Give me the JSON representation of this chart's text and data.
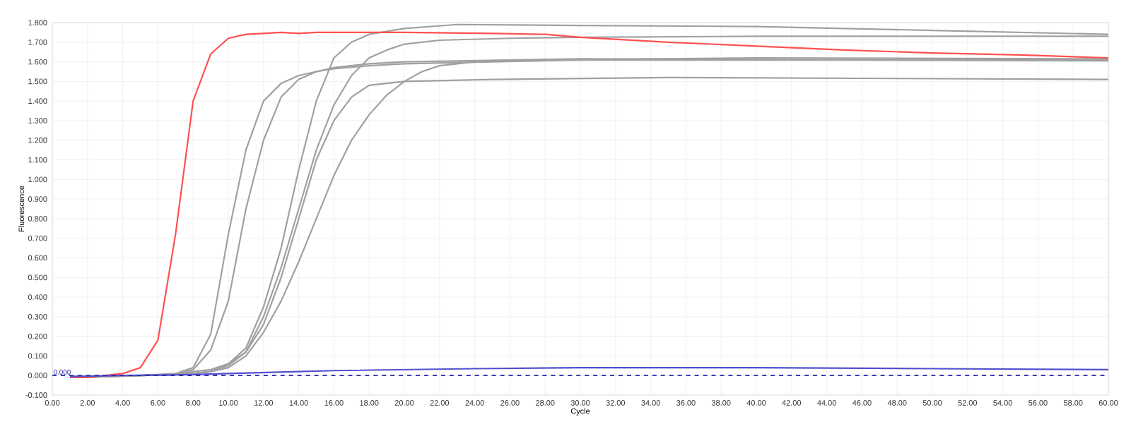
{
  "chart_data": {
    "type": "line",
    "xlabel": "Cycle",
    "ylabel": "Fluorescence",
    "xlim": [
      0,
      60
    ],
    "ylim": [
      -0.1,
      1.8
    ],
    "xticks": [
      {
        "value": 0,
        "label": "0.00"
      },
      {
        "value": 2,
        "label": "2.00"
      },
      {
        "value": 4,
        "label": "4.00"
      },
      {
        "value": 6,
        "label": "6.00"
      },
      {
        "value": 8,
        "label": "8.00"
      },
      {
        "value": 10,
        "label": "10.00"
      },
      {
        "value": 12,
        "label": "12.00"
      },
      {
        "value": 14,
        "label": "14.00"
      },
      {
        "value": 16,
        "label": "16.00"
      },
      {
        "value": 18,
        "label": "18.00"
      },
      {
        "value": 20,
        "label": "20.00"
      },
      {
        "value": 22,
        "label": "22.00"
      },
      {
        "value": 24,
        "label": "24.00"
      },
      {
        "value": 26,
        "label": "26.00"
      },
      {
        "value": 28,
        "label": "28.00"
      },
      {
        "value": 30,
        "label": "30.00"
      },
      {
        "value": 32,
        "label": "32.00"
      },
      {
        "value": 34,
        "label": "34.00"
      },
      {
        "value": 36,
        "label": "36.00"
      },
      {
        "value": 38,
        "label": "38.00"
      },
      {
        "value": 40,
        "label": "40.00"
      },
      {
        "value": 42,
        "label": "42.00"
      },
      {
        "value": 44,
        "label": "44.00"
      },
      {
        "value": 46,
        "label": "46.00"
      },
      {
        "value": 48,
        "label": "48.00"
      },
      {
        "value": 50,
        "label": "50.00"
      },
      {
        "value": 52,
        "label": "52.00"
      },
      {
        "value": 54,
        "label": "54.00"
      },
      {
        "value": 56,
        "label": "56.00"
      },
      {
        "value": 58,
        "label": "58.00"
      },
      {
        "value": 60,
        "label": "60.00"
      }
    ],
    "yticks": [
      {
        "value": -0.1,
        "label": "-0.100"
      },
      {
        "value": 0,
        "label": "0.000"
      },
      {
        "value": 0.1,
        "label": "0.100"
      },
      {
        "value": 0.2,
        "label": "0.200"
      },
      {
        "value": 0.3,
        "label": "0.300"
      },
      {
        "value": 0.4,
        "label": "0.400"
      },
      {
        "value": 0.5,
        "label": "0.500"
      },
      {
        "value": 0.6,
        "label": "0.600"
      },
      {
        "value": 0.7,
        "label": "0.700"
      },
      {
        "value": 0.8,
        "label": "0.800"
      },
      {
        "value": 0.9,
        "label": "0.900"
      },
      {
        "value": 1.0,
        "label": "1.000"
      },
      {
        "value": 1.1,
        "label": "1.100"
      },
      {
        "value": 1.2,
        "label": "1.200"
      },
      {
        "value": 1.3,
        "label": "1.300"
      },
      {
        "value": 1.4,
        "label": "1.400"
      },
      {
        "value": 1.5,
        "label": "1.500"
      },
      {
        "value": 1.6,
        "label": "1.600"
      },
      {
        "value": 1.7,
        "label": "1.700"
      },
      {
        "value": 1.8,
        "label": "1.800"
      }
    ],
    "grid": true,
    "marker": "none",
    "line_style": "solid",
    "ref_lines": [
      {
        "axis": "y",
        "value": 0,
        "label": "0.000",
        "color": "#2b2bb0",
        "line_style": "dashed"
      }
    ],
    "series": [
      {
        "color": "#a0a0a0",
        "x": [
          2,
          3,
          5,
          7,
          8,
          9,
          10,
          11,
          12,
          13,
          14,
          15,
          16,
          18,
          20,
          25,
          30,
          60
        ],
        "values": [
          -0.01,
          -0.005,
          0,
          0.01,
          0.04,
          0.21,
          0.72,
          1.15,
          1.4,
          1.49,
          1.53,
          1.55,
          1.565,
          1.58,
          1.59,
          1.6,
          1.61,
          1.61
        ]
      },
      {
        "color": "#a0a0a0",
        "x": [
          3,
          5,
          7,
          8,
          9,
          10,
          11,
          12,
          13,
          14,
          15,
          16,
          18,
          20,
          30,
          60
        ],
        "values": [
          -0.005,
          0,
          0.005,
          0.03,
          0.13,
          0.38,
          0.85,
          1.2,
          1.42,
          1.51,
          1.55,
          1.57,
          1.59,
          1.6,
          1.615,
          1.605
        ]
      },
      {
        "color": "#a0a0a0",
        "x": [
          1,
          3,
          5,
          7,
          8,
          9,
          10,
          11,
          12,
          13,
          14,
          15,
          16,
          17,
          18,
          20,
          23,
          30,
          40,
          50,
          60
        ],
        "values": [
          -0.005,
          -0.005,
          0,
          0.005,
          0.02,
          0.03,
          0.06,
          0.14,
          0.35,
          0.65,
          1.05,
          1.4,
          1.62,
          1.7,
          1.74,
          1.77,
          1.79,
          1.785,
          1.78,
          1.76,
          1.74
        ]
      },
      {
        "color": "#a0a0a0",
        "x": [
          2,
          3,
          5,
          7,
          8,
          9,
          10,
          11,
          12,
          13,
          14,
          15,
          16,
          17,
          18,
          19,
          20,
          22,
          26,
          30,
          40,
          50,
          60
        ],
        "values": [
          -0.01,
          -0.005,
          0,
          0.005,
          0.01,
          0.02,
          0.05,
          0.12,
          0.3,
          0.55,
          0.85,
          1.15,
          1.38,
          1.53,
          1.62,
          1.66,
          1.69,
          1.71,
          1.72,
          1.725,
          1.73,
          1.73,
          1.73
        ]
      },
      {
        "color": "#a0a0a0",
        "x": [
          1,
          3,
          5,
          7,
          8,
          9,
          10,
          11,
          12,
          13,
          14,
          15,
          16,
          17,
          18,
          20,
          25,
          35,
          60
        ],
        "values": [
          -0.01,
          -0.005,
          0,
          0.005,
          0.01,
          0.02,
          0.06,
          0.12,
          0.26,
          0.5,
          0.8,
          1.1,
          1.3,
          1.42,
          1.48,
          1.5,
          1.51,
          1.52,
          1.51
        ]
      },
      {
        "color": "#a0a0a0",
        "x": [
          4,
          5,
          7,
          8,
          9,
          10,
          11,
          12,
          13,
          14,
          15,
          16,
          17,
          18,
          19,
          20,
          21,
          22,
          24,
          28,
          40,
          60
        ],
        "values": [
          -0.003,
          0,
          0.005,
          0.01,
          0.02,
          0.04,
          0.1,
          0.22,
          0.38,
          0.58,
          0.8,
          1.02,
          1.2,
          1.33,
          1.43,
          1.5,
          1.55,
          1.58,
          1.6,
          1.61,
          1.62,
          1.615
        ]
      },
      {
        "color": "#ff5050",
        "x": [
          1,
          2,
          3,
          4,
          5,
          6,
          7,
          8,
          9,
          10,
          11,
          12,
          13,
          14,
          15,
          18,
          20,
          25,
          28,
          30,
          35,
          40,
          45,
          50,
          55,
          60
        ],
        "values": [
          -0.01,
          -0.01,
          0,
          0.01,
          0.04,
          0.18,
          0.72,
          1.4,
          1.64,
          1.72,
          1.74,
          1.745,
          1.75,
          1.745,
          1.75,
          1.75,
          1.75,
          1.745,
          1.74,
          1.725,
          1.7,
          1.68,
          1.66,
          1.645,
          1.635,
          1.62
        ]
      },
      {
        "color": "#5050d0",
        "x": [
          1,
          4,
          8,
          10,
          14,
          16,
          20,
          24,
          30,
          40,
          50,
          60
        ],
        "values": [
          -0.005,
          0,
          0.005,
          0.01,
          0.02,
          0.025,
          0.03,
          0.035,
          0.04,
          0.04,
          0.035,
          0.03
        ]
      }
    ]
  }
}
